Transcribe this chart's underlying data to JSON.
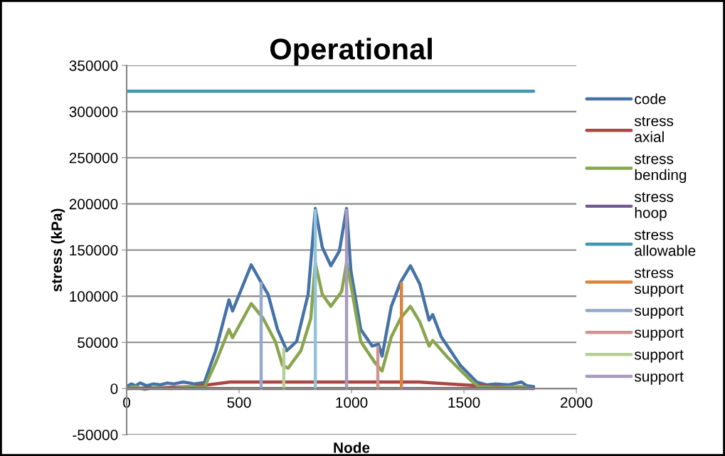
{
  "chart_data": {
    "type": "line",
    "title": "Operational",
    "xlabel": "Node",
    "ylabel": "stress (kPa)",
    "xlim": [
      0,
      2000
    ],
    "xticks": [
      0,
      500,
      1000,
      1500,
      2000
    ],
    "ylim": [
      -50000,
      350000
    ],
    "yticks": [
      -50000,
      0,
      50000,
      100000,
      150000,
      200000,
      250000,
      300000,
      350000
    ],
    "grid": "y",
    "legend": "right",
    "marker": "none",
    "line_style": "solid",
    "series": [
      {
        "name": "code",
        "color": "#4572a7",
        "x": [
          0,
          20,
          40,
          60,
          90,
          120,
          150,
          180,
          210,
          250,
          280,
          300,
          330,
          345,
          396,
          455,
          471,
          554,
          598,
          629,
          671,
          712,
          756,
          807,
          839,
          870,
          908,
          946,
          978,
          997,
          1041,
          1092,
          1120,
          1136,
          1177,
          1218,
          1262,
          1304,
          1345,
          1361,
          1399,
          1484,
          1557,
          1600,
          1641,
          1700,
          1756,
          1780,
          1810
        ],
        "values": [
          2000,
          5000,
          3000,
          6000,
          3000,
          5000,
          4000,
          6000,
          5000,
          7000,
          6000,
          5000,
          6000,
          6000,
          41000,
          96000,
          84000,
          134000,
          115000,
          102000,
          64000,
          41000,
          51000,
          102000,
          195000,
          153000,
          133000,
          149000,
          195000,
          128000,
          64000,
          46000,
          48000,
          35000,
          89000,
          115000,
          133000,
          113000,
          74000,
          80000,
          56000,
          25000,
          7000,
          4000,
          5000,
          4000,
          7000,
          3000,
          2000
        ]
      },
      {
        "name": "stress\naxial",
        "color": "#aa4643",
        "x": [
          0,
          300,
          460,
          700,
          1000,
          1300,
          1360,
          1500,
          1650,
          1810
        ],
        "values": [
          0,
          2000,
          7000,
          7000,
          7000,
          7000,
          6000,
          4000,
          2000,
          0
        ]
      },
      {
        "name": "stress\nbending",
        "color": "#89a54e",
        "x": [
          0,
          40,
          80,
          120,
          200,
          280,
          345,
          396,
          455,
          471,
          554,
          607,
          661,
          693,
          718,
          775,
          819,
          839,
          870,
          908,
          956,
          978,
          997,
          1041,
          1104,
          1136,
          1177,
          1218,
          1262,
          1304,
          1345,
          1361,
          1430,
          1525,
          1567,
          1650,
          1750,
          1810
        ],
        "values": [
          0,
          2000,
          -1000,
          1000,
          0,
          2000,
          1000,
          28000,
          64000,
          55000,
          92000,
          76000,
          51000,
          25000,
          22000,
          41000,
          76000,
          136000,
          102000,
          89000,
          105000,
          136000,
          113000,
          51000,
          28000,
          19000,
          56000,
          76000,
          89000,
          72000,
          46000,
          52000,
          33000,
          10000,
          2000,
          1000,
          2000,
          0
        ]
      },
      {
        "name": "stress\nhoop",
        "color": "#71588f",
        "x": [
          0,
          1810
        ],
        "values": [
          0,
          0
        ]
      },
      {
        "name": "stress\nallowable",
        "color": "#4198af",
        "x": [
          0,
          1810
        ],
        "values": [
          322000,
          322000
        ]
      },
      {
        "name": "stress\nsupport",
        "color": "#db843d",
        "x": [
          1222,
          1222
        ],
        "values": [
          0,
          114000
        ]
      },
      {
        "name": "support",
        "color": "#93a9cf",
        "x": [
          598,
          598
        ],
        "values": [
          0,
          114000
        ]
      },
      {
        "name": "support",
        "color": "#d19392",
        "x": [
          1117,
          1117
        ],
        "values": [
          0,
          45000
        ]
      },
      {
        "name": "support",
        "color": "#b9cd96",
        "x": [
          699,
          699
        ],
        "values": [
          0,
          43000
        ]
      },
      {
        "name": "support",
        "color": "#a99bbd",
        "x": [
          978,
          978
        ],
        "values": [
          0,
          193000
        ]
      },
      {
        "color": "#92c3d9",
        "x": [
          839,
          839
        ],
        "values": [
          0,
          193000
        ]
      }
    ]
  }
}
